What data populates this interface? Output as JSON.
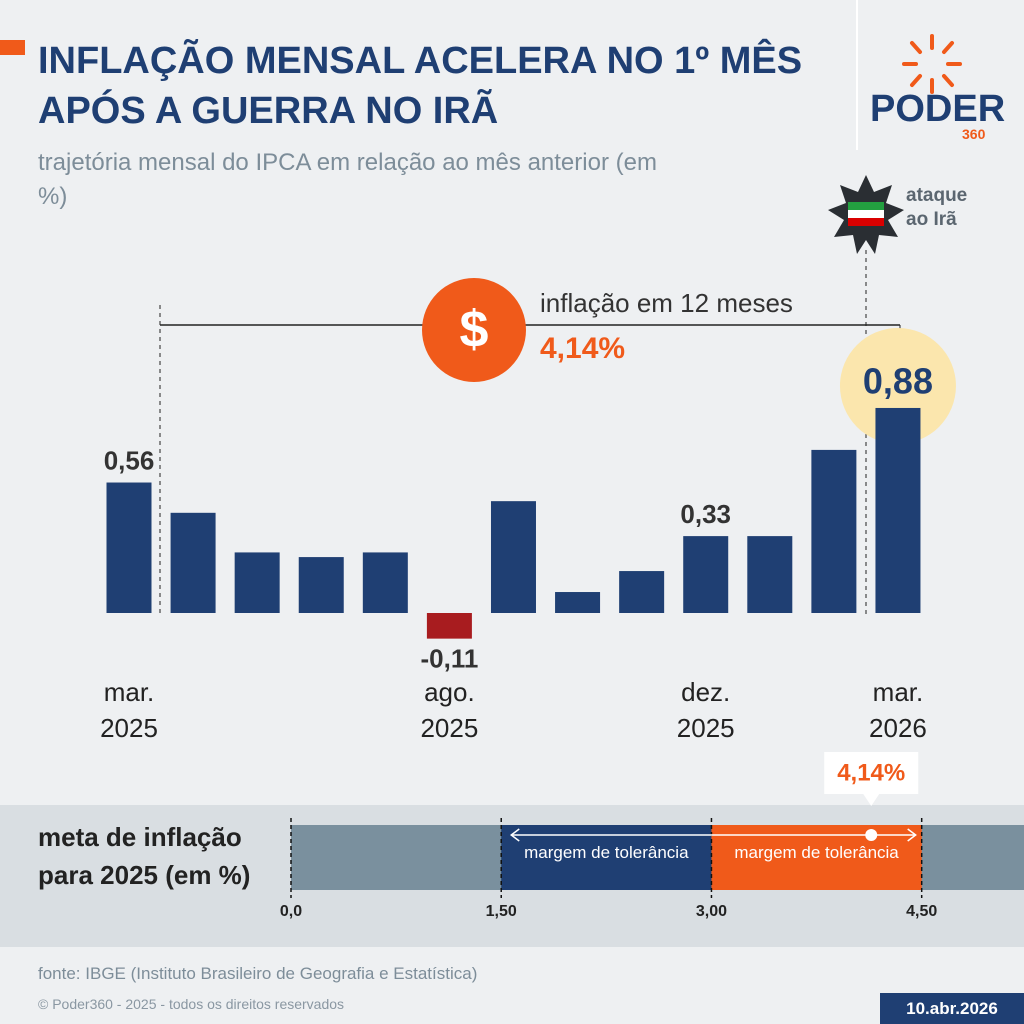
{
  "header": {
    "title": "INFLAÇÃO MENSAL ACELERA NO 1º MÊS APÓS A GUERRA NO IRÃ",
    "subtitle": "trajetória mensal do IPCA em relação ao mês anterior (em %)",
    "logo": "PODER",
    "logo_suffix": "360"
  },
  "chart_data": [
    {
      "type": "bar",
      "categories": [
        "mar. 2025",
        null,
        null,
        null,
        null,
        "ago. 2025",
        null,
        null,
        null,
        "dez. 2025",
        null,
        null,
        "mar. 2026"
      ],
      "values": [
        0.56,
        0.43,
        0.26,
        0.24,
        0.26,
        -0.11,
        0.48,
        0.09,
        0.18,
        0.33,
        0.33,
        0.7,
        0.88
      ],
      "value_labels": [
        "0,56",
        null,
        null,
        null,
        null,
        "-0,11",
        null,
        null,
        null,
        "0,33",
        null,
        null,
        "0,88"
      ],
      "color": "#1f3f73",
      "negative_color": "#a81c1f",
      "highlight_color": "#fbe6ad",
      "ylim": [
        -0.3,
        1.2
      ],
      "annotations": [
        {
          "symbol": "$",
          "text": "inflação em 12 meses",
          "label": "4,14%"
        },
        {
          "text": "ataque ao Irã"
        }
      ]
    },
    {
      "type": "range",
      "title": "meta de inflação para 2025 (em %)",
      "xlim": [
        0,
        5.23
      ],
      "xticks": [
        {
          "value": 0,
          "label": "0,0"
        },
        {
          "value": 1.5,
          "label": "1,50"
        },
        {
          "value": 3,
          "label": "3,00"
        },
        {
          "value": 4.5,
          "label": "4,50"
        }
      ],
      "color": "#7a909e",
      "ranges": [
        {
          "label": "margem de tolerância",
          "start": 1.5,
          "end": 3,
          "color": "#1f3f73"
        },
        {
          "label": "margem de tolerância",
          "start": 3,
          "end": 4.5,
          "color": "#f05a1a"
        }
      ],
      "marker": 4.14,
      "marker_label": "4,14%"
    }
  ],
  "footer": {
    "source": "fonte: IBGE (Instituto Brasileiro de Geografia e Estatística)",
    "copyright": "© Poder360 - 2025 - todos os direitos reservados",
    "date": "10.abr.2026"
  }
}
